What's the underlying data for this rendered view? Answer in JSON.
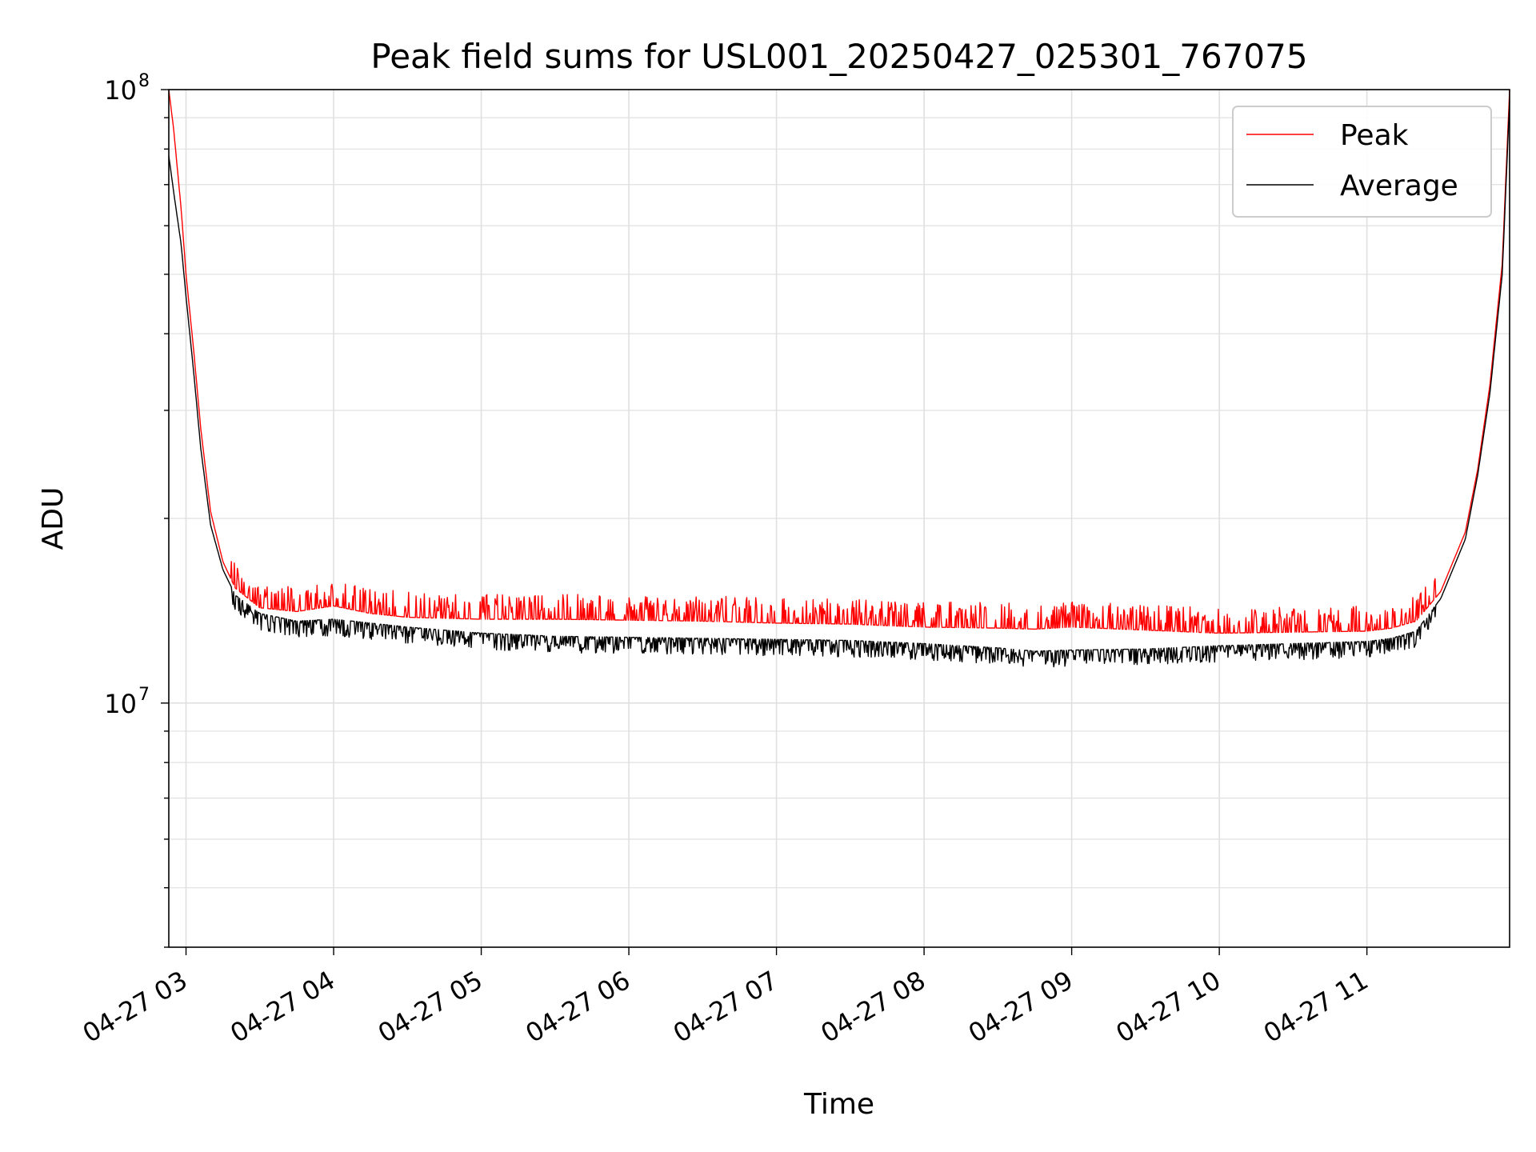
{
  "chart_data": {
    "type": "line",
    "title": "Peak field sums for USL001_20250427_025301_767075",
    "xlabel": "Time",
    "ylabel": "ADU",
    "yscale": "log",
    "ylim": [
      4000000,
      100000000
    ],
    "xlim": [
      "2025-04-27 02:53",
      "2025-04-27 11:58"
    ],
    "grid": true,
    "legend_position": "top-right",
    "x_ticks": [
      {
        "t": "2025-04-27 03:00",
        "label": "04-27 03"
      },
      {
        "t": "2025-04-27 04:00",
        "label": "04-27 04"
      },
      {
        "t": "2025-04-27 05:00",
        "label": "04-27 05"
      },
      {
        "t": "2025-04-27 06:00",
        "label": "04-27 06"
      },
      {
        "t": "2025-04-27 07:00",
        "label": "04-27 07"
      },
      {
        "t": "2025-04-27 08:00",
        "label": "04-27 08"
      },
      {
        "t": "2025-04-27 09:00",
        "label": "04-27 09"
      },
      {
        "t": "2025-04-27 10:00",
        "label": "04-27 10"
      },
      {
        "t": "2025-04-27 11:00",
        "label": "04-27 11"
      }
    ],
    "y_ticks": [
      {
        "value": 10000000,
        "base": "10",
        "exp": "7"
      },
      {
        "value": 100000000,
        "base": "10",
        "exp": "8"
      }
    ],
    "series": [
      {
        "name": "Peak",
        "color": "#ff0000",
        "style": "spiky-above-average",
        "x": [
          "2025-04-27 02:53",
          "2025-04-27 02:55",
          "2025-04-27 02:58",
          "2025-04-27 03:00",
          "2025-04-27 03:03",
          "2025-04-27 03:06",
          "2025-04-27 03:10",
          "2025-04-27 03:15",
          "2025-04-27 03:20",
          "2025-04-27 03:30",
          "2025-04-27 03:45",
          "2025-04-27 04:00",
          "2025-04-27 04:15",
          "2025-04-27 04:30",
          "2025-04-27 05:00",
          "2025-04-27 05:30",
          "2025-04-27 06:00",
          "2025-04-27 06:30",
          "2025-04-27 07:00",
          "2025-04-27 07:30",
          "2025-04-27 08:00",
          "2025-04-27 08:30",
          "2025-04-27 08:45",
          "2025-04-27 09:00",
          "2025-04-27 09:30",
          "2025-04-27 10:00",
          "2025-04-27 10:30",
          "2025-04-27 11:00",
          "2025-04-27 11:10",
          "2025-04-27 11:20",
          "2025-04-27 11:30",
          "2025-04-27 11:40",
          "2025-04-27 11:45",
          "2025-04-27 11:50",
          "2025-04-27 11:55",
          "2025-04-27 11:58"
        ],
        "y": [
          100000000,
          86000000,
          64000000,
          50000000,
          38000000,
          28000000,
          20500000,
          17000000,
          15400000,
          14300000,
          14100000,
          14400000,
          14000000,
          13800000,
          13700000,
          13700000,
          13650000,
          13600000,
          13500000,
          13450000,
          13300000,
          13250000,
          13200000,
          13300000,
          13150000,
          13000000,
          13050000,
          13100000,
          13250000,
          13600000,
          15200000,
          19000000,
          24000000,
          33000000,
          52000000,
          100000000
        ]
      },
      {
        "name": "Average",
        "color": "#000000",
        "style": "noisy-below-baseline",
        "x": [
          "2025-04-27 02:53",
          "2025-04-27 02:55",
          "2025-04-27 02:58",
          "2025-04-27 03:00",
          "2025-04-27 03:03",
          "2025-04-27 03:06",
          "2025-04-27 03:10",
          "2025-04-27 03:15",
          "2025-04-27 03:20",
          "2025-04-27 03:30",
          "2025-04-27 03:45",
          "2025-04-27 04:00",
          "2025-04-27 04:15",
          "2025-04-27 04:30",
          "2025-04-27 05:00",
          "2025-04-27 05:30",
          "2025-04-27 06:00",
          "2025-04-27 06:30",
          "2025-04-27 07:00",
          "2025-04-27 07:30",
          "2025-04-27 08:00",
          "2025-04-27 08:30",
          "2025-04-27 08:45",
          "2025-04-27 09:00",
          "2025-04-27 09:30",
          "2025-04-27 10:00",
          "2025-04-27 10:30",
          "2025-04-27 11:00",
          "2025-04-27 11:10",
          "2025-04-27 11:20",
          "2025-04-27 11:30",
          "2025-04-27 11:40",
          "2025-04-27 11:45",
          "2025-04-27 11:50",
          "2025-04-27 11:55",
          "2025-04-27 11:58"
        ],
        "y": [
          78000000,
          68000000,
          56000000,
          46000000,
          35000000,
          26000000,
          19500000,
          16500000,
          15000000,
          14000000,
          13600000,
          13700000,
          13500000,
          13300000,
          13000000,
          12850000,
          12800000,
          12750000,
          12700000,
          12650000,
          12500000,
          12300000,
          12150000,
          12200000,
          12250000,
          12400000,
          12500000,
          12600000,
          12750000,
          13100000,
          14800000,
          18500000,
          23500000,
          32000000,
          50000000,
          96000000
        ]
      }
    ]
  }
}
